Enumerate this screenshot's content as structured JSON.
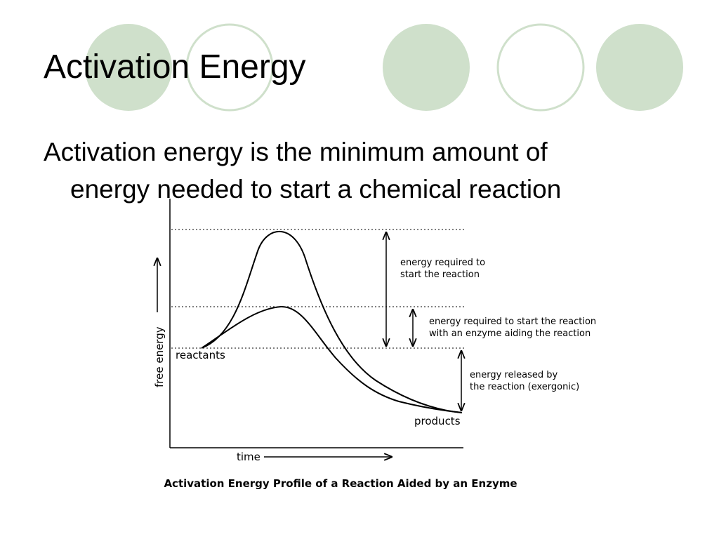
{
  "slide": {
    "title": "Activation Energy",
    "body_line1": "Activation energy is the minimum amount of",
    "body_line2": "energy needed to start a chemical reaction",
    "theme_colors": {
      "circle_fill": "#cfe0cb",
      "circle_stroke": "#cfe0cb"
    }
  },
  "figure": {
    "caption": "Activation Energy Profile of a Reaction Aided by an Enzyme",
    "y_axis_label": "free energy",
    "x_axis_label": "time",
    "labels": {
      "reactants": "reactants",
      "products": "products",
      "annotation1_line1": "energy required to",
      "annotation1_line2": "start the reaction",
      "annotation2_line1": "energy required to start the reaction",
      "annotation2_line2": "with an enzyme aiding the reaction",
      "annotation3_line1": "energy released by",
      "annotation3_line2": "the reaction (exergonic)"
    }
  }
}
